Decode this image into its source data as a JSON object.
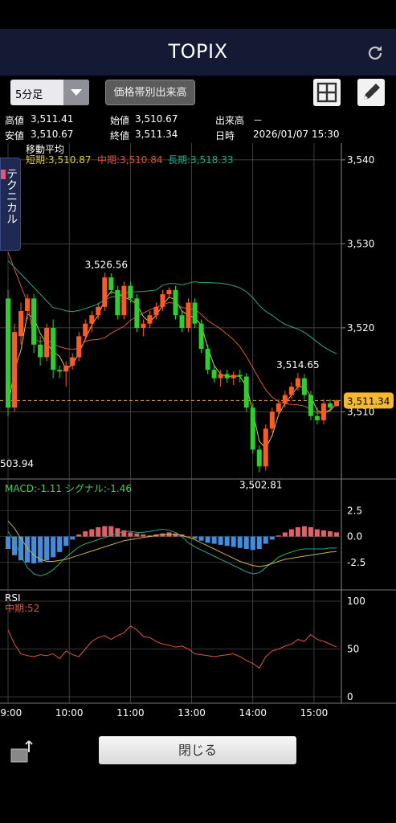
{
  "header": {
    "title": "TOPIX"
  },
  "controls": {
    "timeframe": "5分足",
    "volume_button": "価格帯別出来高"
  },
  "info": {
    "high_label": "高値",
    "high": "3,511.41",
    "open_label": "始値",
    "open": "3,510.67",
    "volume_label": "出来高",
    "volume": "－",
    "low_label": "安値",
    "low": "3,510.67",
    "close_label": "終値",
    "close": "3,511.34",
    "datetime_label": "日時",
    "datetime": "2026/01/07 15:30"
  },
  "side_tab": "テクニカル",
  "colors": {
    "up": "#ff5a1f",
    "down": "#2bd12b",
    "short": "#d8d02a",
    "mid": "#d9563a",
    "long": "#22a884",
    "macd_hist_pos": "#e0606a",
    "macd_hist_neg": "#3f8fe0",
    "price_tag": "#f5b82e"
  },
  "footer": {
    "close_button": "閉じる"
  },
  "chart_data": {
    "type": "candlestick",
    "price_panel": {
      "title": "移動平均",
      "legend": [
        {
          "label": "短期:3,510.87",
          "color": "#d8d02a"
        },
        {
          "label": "中期:3,510.84",
          "color": "#d9563a"
        },
        {
          "label": "長期:3,518.33",
          "color": "#22a884"
        }
      ],
      "ylim": [
        3502,
        3542
      ],
      "yticks": [
        "3,540",
        "3,530",
        "3,520",
        "3,510"
      ],
      "annotations": {
        "high": "3,526.56",
        "low": "3,502.81",
        "left_low": "503.94",
        "mid_high": "3,514.65",
        "last": "3,511.34"
      },
      "candles": [
        [
          3523.5,
          3524.5,
          3509.5,
          3510.5
        ],
        [
          3510.5,
          3520.5,
          3510.0,
          3519.5
        ],
        [
          3519.0,
          3523.0,
          3518.0,
          3522.0
        ],
        [
          3522.0,
          3524.0,
          3521.0,
          3523.5
        ],
        [
          3523.5,
          3524.0,
          3517.0,
          3518.0
        ],
        [
          3518.0,
          3519.0,
          3515.5,
          3516.5
        ],
        [
          3516.5,
          3520.5,
          3516.0,
          3520.0
        ],
        [
          3520.0,
          3521.0,
          3514.0,
          3515.0
        ],
        [
          3515.0,
          3515.5,
          3514.0,
          3514.8
        ],
        [
          3514.8,
          3516.0,
          3513.0,
          3515.5
        ],
        [
          3515.5,
          3517.0,
          3515.0,
          3516.5
        ],
        [
          3516.5,
          3519.5,
          3516.0,
          3519.0
        ],
        [
          3519.0,
          3521.0,
          3518.5,
          3520.5
        ],
        [
          3520.5,
          3522.0,
          3519.5,
          3521.5
        ],
        [
          3521.5,
          3523.0,
          3521.0,
          3522.5
        ],
        [
          3522.5,
          3526.56,
          3522.0,
          3526.0
        ],
        [
          3526.0,
          3526.5,
          3524.0,
          3524.5
        ],
        [
          3524.5,
          3525.0,
          3521.0,
          3521.5
        ],
        [
          3521.5,
          3525.5,
          3521.0,
          3525.0
        ],
        [
          3525.0,
          3525.5,
          3523.0,
          3523.5
        ],
        [
          3523.5,
          3524.0,
          3519.5,
          3520.0
        ],
        [
          3520.0,
          3521.0,
          3519.0,
          3520.5
        ],
        [
          3520.5,
          3522.0,
          3520.0,
          3521.5
        ],
        [
          3521.5,
          3523.0,
          3521.0,
          3522.5
        ],
        [
          3522.5,
          3524.5,
          3522.0,
          3524.0
        ],
        [
          3524.0,
          3524.8,
          3523.5,
          3524.5
        ],
        [
          3524.5,
          3525.0,
          3521.0,
          3521.5
        ],
        [
          3521.5,
          3522.0,
          3519.5,
          3520.0
        ],
        [
          3520.0,
          3523.5,
          3519.5,
          3523.0
        ],
        [
          3523.0,
          3523.5,
          3520.0,
          3520.5
        ],
        [
          3520.5,
          3521.0,
          3517.0,
          3517.5
        ],
        [
          3517.5,
          3518.0,
          3514.5,
          3515.0
        ],
        [
          3515.0,
          3515.5,
          3513.5,
          3514.0
        ],
        [
          3514.0,
          3515.0,
          3513.0,
          3514.5
        ],
        [
          3514.5,
          3515.0,
          3513.5,
          3514.0
        ],
        [
          3514.0,
          3514.8,
          3513.2,
          3514.4
        ],
        [
          3514.4,
          3515.0,
          3513.5,
          3514.2
        ],
        [
          3514.2,
          3514.6,
          3510.0,
          3510.5
        ],
        [
          3510.5,
          3511.0,
          3505.0,
          3505.5
        ],
        [
          3505.5,
          3506.0,
          3502.81,
          3503.5
        ],
        [
          3503.5,
          3508.5,
          3503.0,
          3508.0
        ],
        [
          3508.0,
          3510.5,
          3507.5,
          3510.0
        ],
        [
          3510.0,
          3511.5,
          3509.5,
          3511.0
        ],
        [
          3511.0,
          3512.5,
          3510.5,
          3512.0
        ],
        [
          3512.0,
          3513.5,
          3511.5,
          3513.0
        ],
        [
          3513.0,
          3514.65,
          3512.5,
          3514.0
        ],
        [
          3514.0,
          3514.5,
          3511.5,
          3512.0
        ],
        [
          3512.0,
          3512.5,
          3509.0,
          3509.5
        ],
        [
          3509.5,
          3510.5,
          3508.5,
          3509.0
        ],
        [
          3509.0,
          3511.5,
          3508.5,
          3511.0
        ],
        [
          3511.0,
          3511.5,
          3510.0,
          3510.5
        ],
        [
          3510.67,
          3511.41,
          3510.67,
          3511.34
        ]
      ]
    },
    "macd_panel": {
      "label": "MACD:-1.11 シグナル:-1.46",
      "yticks": [
        "2.5",
        "0.0",
        "-2.5"
      ],
      "ylim": [
        -5,
        4
      ],
      "hist": [
        -1.2,
        -1.8,
        -2.3,
        -2.5,
        -2.6,
        -2.5,
        -2.3,
        -2.0,
        -1.5,
        -0.9,
        -0.3,
        0.2,
        0.5,
        0.7,
        0.9,
        1.0,
        1.0,
        0.8,
        0.6,
        0.4,
        0.3,
        0.2,
        0.1,
        0.2,
        0.3,
        0.4,
        0.3,
        0.2,
        0.0,
        -0.2,
        -0.4,
        -0.6,
        -0.7,
        -0.8,
        -0.9,
        -1.0,
        -1.1,
        -1.2,
        -1.3,
        -1.2,
        -0.7,
        -0.3,
        0.1,
        0.4,
        0.7,
        0.9,
        1.0,
        0.9,
        0.7,
        0.6,
        0.5,
        0.4
      ],
      "macd": [
        0.5,
        -0.5,
        -1.8,
        -3.0,
        -3.6,
        -3.8,
        -3.6,
        -3.2,
        -2.6,
        -2.0,
        -1.5,
        -1.0,
        -0.7,
        -0.5,
        -0.3,
        -0.1,
        0.1,
        0.3,
        0.5,
        0.5,
        0.4,
        0.4,
        0.5,
        0.6,
        0.7,
        0.6,
        0.4,
        0.0,
        -0.6,
        -1.0,
        -1.3,
        -1.6,
        -1.9,
        -2.2,
        -2.5,
        -2.8,
        -3.1,
        -3.4,
        -3.6,
        -3.5,
        -3.0,
        -2.5,
        -2.0,
        -1.7,
        -1.5,
        -1.3,
        -1.2,
        -1.2,
        -1.2,
        -1.2,
        -1.1,
        -1.11
      ],
      "signal": [
        1.5,
        0.8,
        -0.2,
        -1.1,
        -1.8,
        -2.2,
        -2.4,
        -2.4,
        -2.3,
        -2.2,
        -2.0,
        -1.8,
        -1.6,
        -1.4,
        -1.2,
        -1.0,
        -0.8,
        -0.6,
        -0.4,
        -0.3,
        -0.2,
        -0.1,
        0.0,
        0.1,
        0.2,
        0.2,
        0.2,
        0.1,
        -0.1,
        -0.3,
        -0.6,
        -0.9,
        -1.2,
        -1.5,
        -1.8,
        -2.1,
        -2.4,
        -2.6,
        -2.8,
        -2.9,
        -2.8,
        -2.6,
        -2.4,
        -2.2,
        -2.1,
        -2.0,
        -1.9,
        -1.8,
        -1.7,
        -1.6,
        -1.5,
        -1.46
      ]
    },
    "rsi_panel": {
      "title": "RSI",
      "legend": "中期:52",
      "yticks": [
        "100",
        "50",
        "0"
      ],
      "ylim": [
        0,
        100
      ],
      "values": [
        70,
        55,
        45,
        43,
        42,
        44,
        43,
        45,
        40,
        48,
        44,
        42,
        50,
        58,
        62,
        64,
        60,
        64,
        67,
        74,
        70,
        63,
        62,
        58,
        55,
        54,
        52,
        53,
        50,
        45,
        44,
        43,
        42,
        43,
        44,
        45,
        42,
        38,
        35,
        30,
        42,
        48,
        50,
        53,
        55,
        60,
        58,
        65,
        60,
        58,
        55,
        52
      ]
    },
    "x_labels": [
      "09:00",
      "10:00",
      "11:00",
      "13:00",
      "14:00",
      "15:00"
    ]
  }
}
